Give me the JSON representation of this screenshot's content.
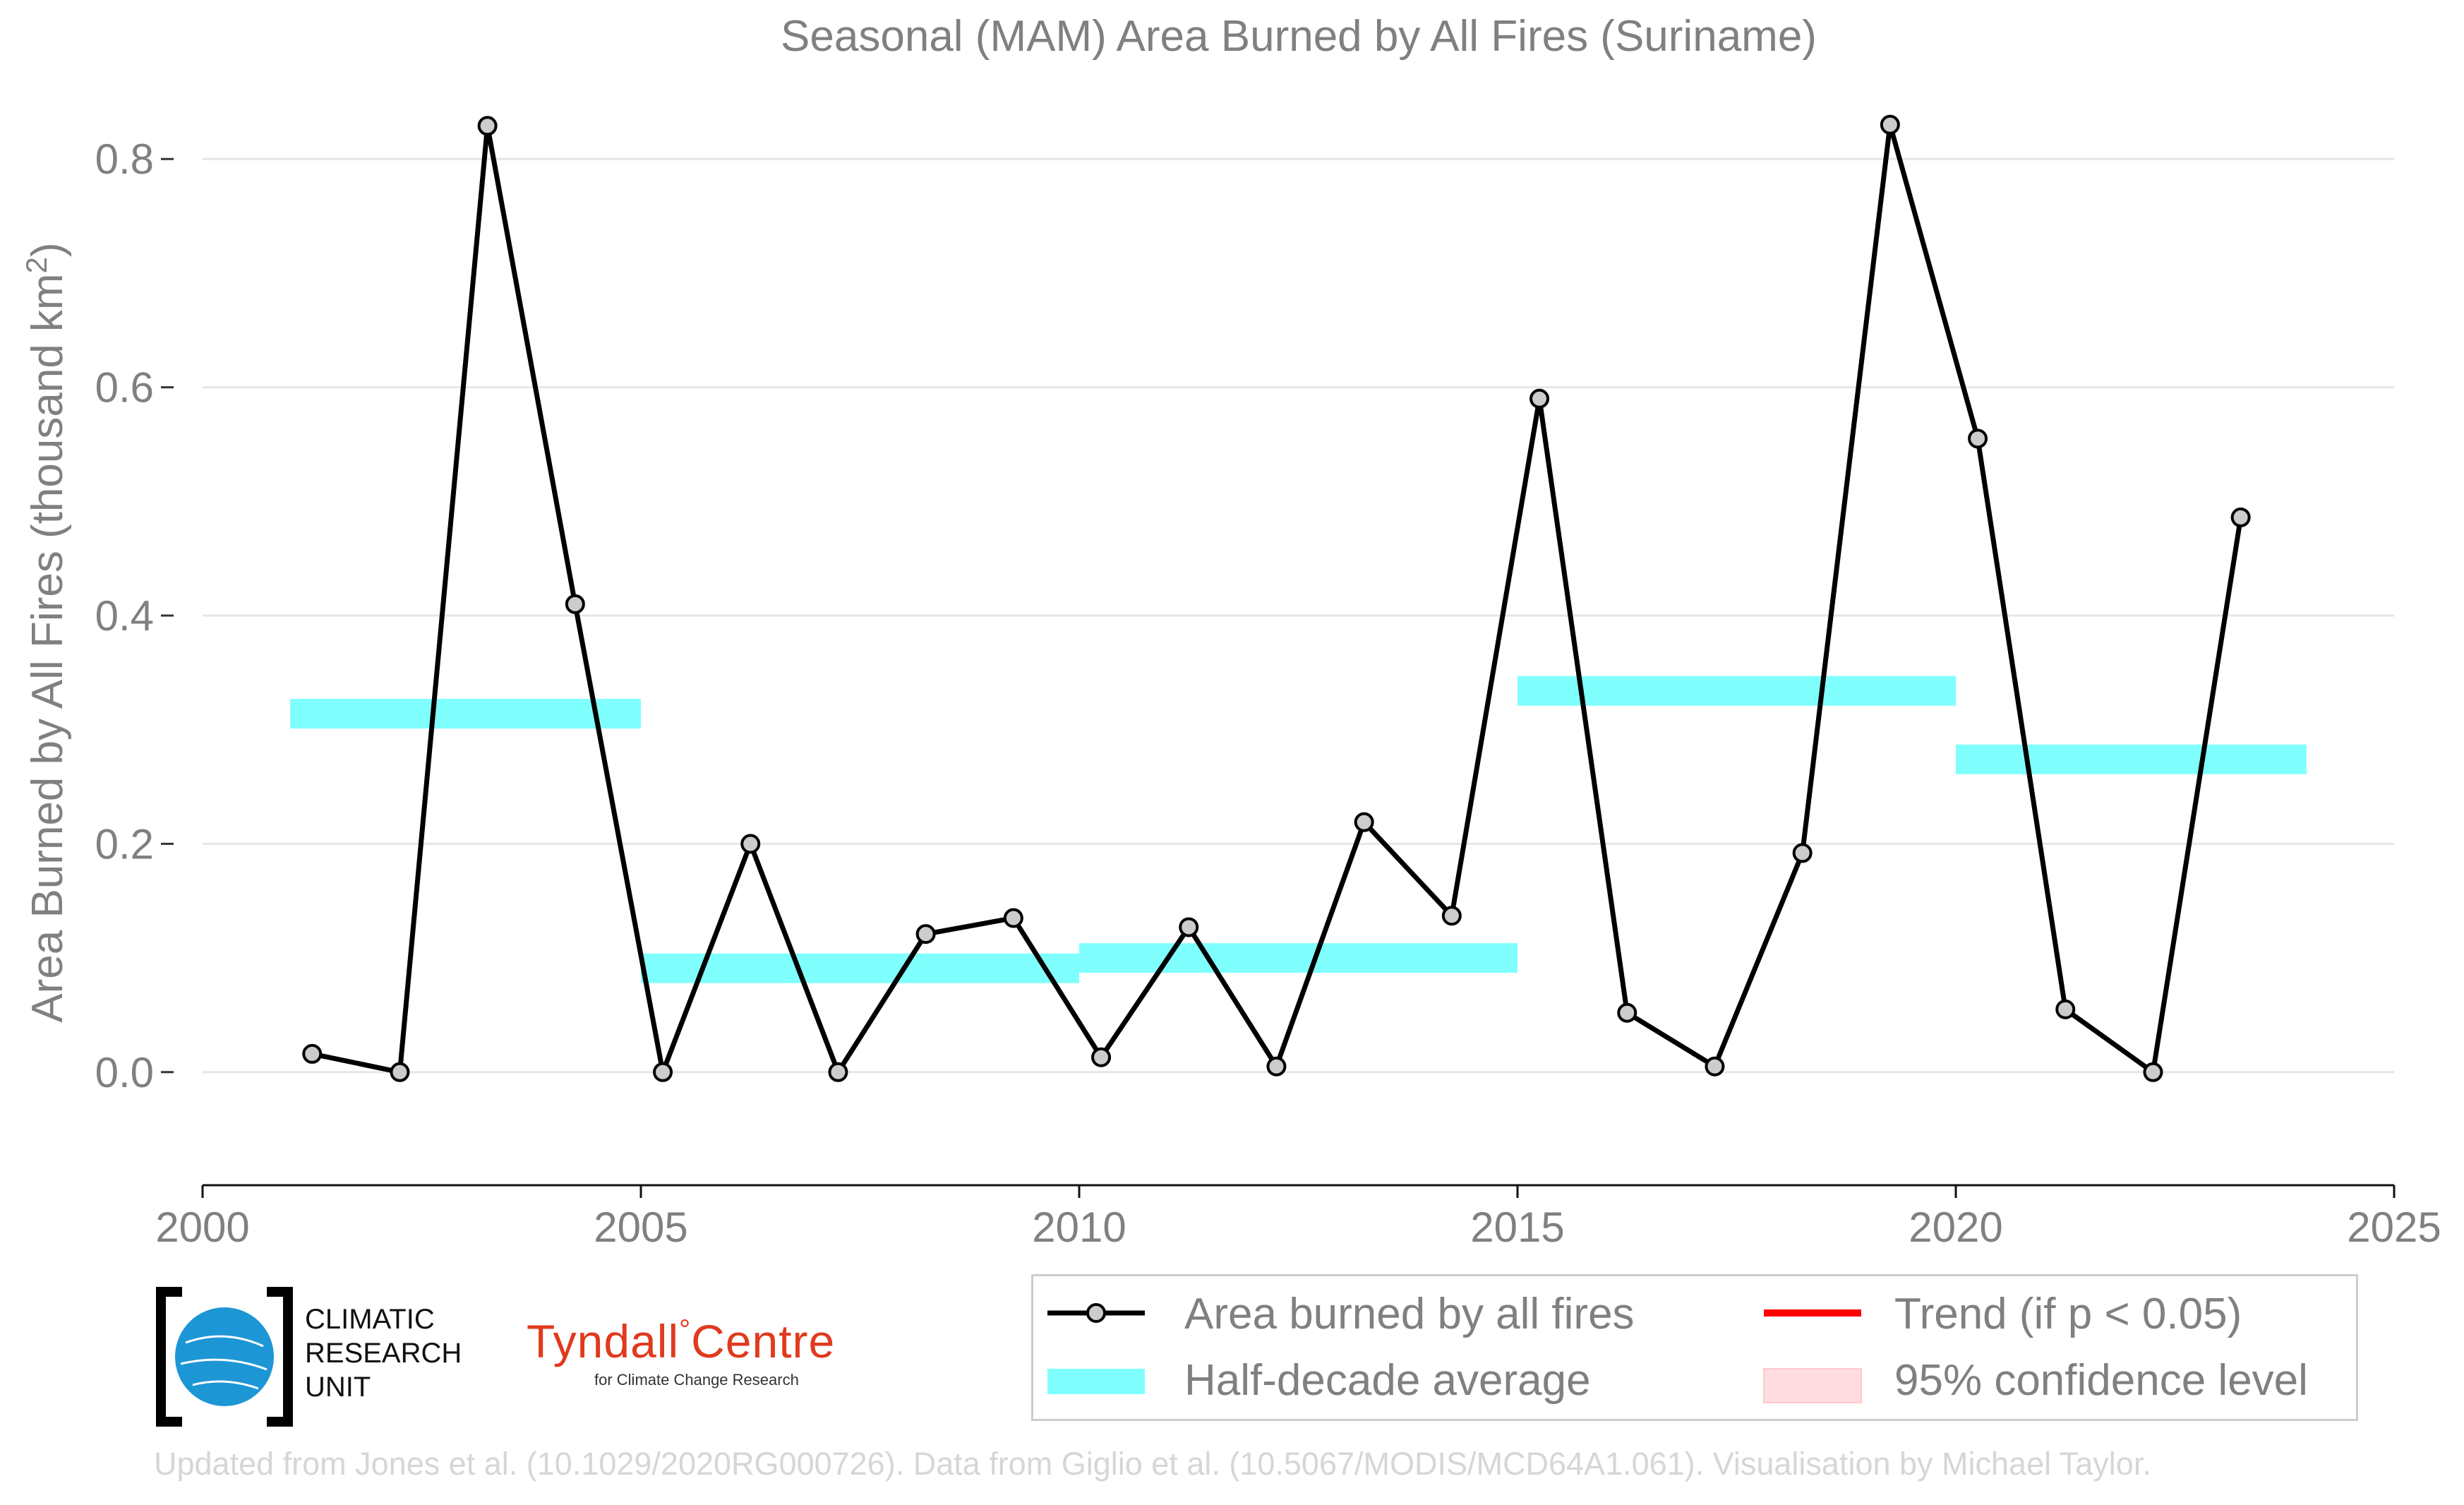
{
  "chart_data": {
    "type": "line",
    "title": "Seasonal (MAM) Area Burned by All Fires (Suriname)",
    "ylabel": "Area Burned by All Fires (thousand km",
    "ylabel_sup": "2",
    "ylabel_close": ")",
    "xlim": [
      2000,
      2025
    ],
    "ylim": [
      -0.07,
      0.87
    ],
    "x_ticks": [
      "2000",
      "2005",
      "2010",
      "2015",
      "2020",
      "2025"
    ],
    "y_ticks": [
      "0.0",
      "0.2",
      "0.4",
      "0.6",
      "0.8"
    ],
    "y_tick_values": [
      0.0,
      0.2,
      0.4,
      0.6,
      0.8
    ],
    "x_tick_values": [
      2000,
      2005,
      2010,
      2015,
      2020,
      2025
    ],
    "grid": "horizontal",
    "series": [
      {
        "name": "Area burned by all fires",
        "kind": "line-markers",
        "color": "#000000",
        "marker_fill": "#cccccc",
        "x": [
          2001.25,
          2002.25,
          2003.25,
          2004.25,
          2005.25,
          2006.25,
          2007.25,
          2008.25,
          2009.25,
          2010.25,
          2011.25,
          2012.25,
          2013.25,
          2014.25,
          2015.25,
          2016.25,
          2017.25,
          2018.25,
          2019.25,
          2020.25,
          2021.25,
          2022.25,
          2023.25
        ],
        "values": [
          0.016,
          0.0,
          0.829,
          0.41,
          0.0,
          0.2,
          0.0,
          0.121,
          0.135,
          0.013,
          0.127,
          0.005,
          0.219,
          0.137,
          0.59,
          0.052,
          0.005,
          0.192,
          0.83,
          0.555,
          0.055,
          0.0,
          0.486
        ]
      },
      {
        "name": "Half-decade average",
        "kind": "segments",
        "color": "#80ffff",
        "segments": [
          {
            "x0": 2001,
            "x1": 2005,
            "y": 0.314
          },
          {
            "x0": 2005,
            "x1": 2010,
            "y": 0.091
          },
          {
            "x0": 2010,
            "x1": 2015,
            "y": 0.1
          },
          {
            "x0": 2015,
            "x1": 2020,
            "y": 0.334
          },
          {
            "x0": 2020,
            "x1": 2024,
            "y": 0.274
          }
        ]
      }
    ],
    "legend": {
      "placement": "bottom-right",
      "entries": [
        {
          "label": "Area burned by all fires",
          "style": "line-marker",
          "color": "#000000"
        },
        {
          "label": "Trend (if p < 0.05)",
          "style": "line",
          "color": "#ff0000"
        },
        {
          "label": "Half-decade average",
          "style": "band",
          "color": "#80ffff"
        },
        {
          "label": "95% confidence level",
          "style": "band",
          "color": "#ffdde0"
        }
      ]
    }
  },
  "logos": {
    "cru_line1": "CLIMATIC",
    "cru_line2": "RESEARCH",
    "cru_line3": "UNIT",
    "tyndall_name": "Tyndall",
    "tyndall_degree": "°",
    "tyndall_centre": "Centre",
    "tyndall_sub": "for Climate Change Research"
  },
  "credit": "Updated from Jones et al. (10.1029/2020RG000726). Data from Giglio et al. (10.5067/MODIS/MCD64A1.061). Visualisation by Michael Taylor."
}
